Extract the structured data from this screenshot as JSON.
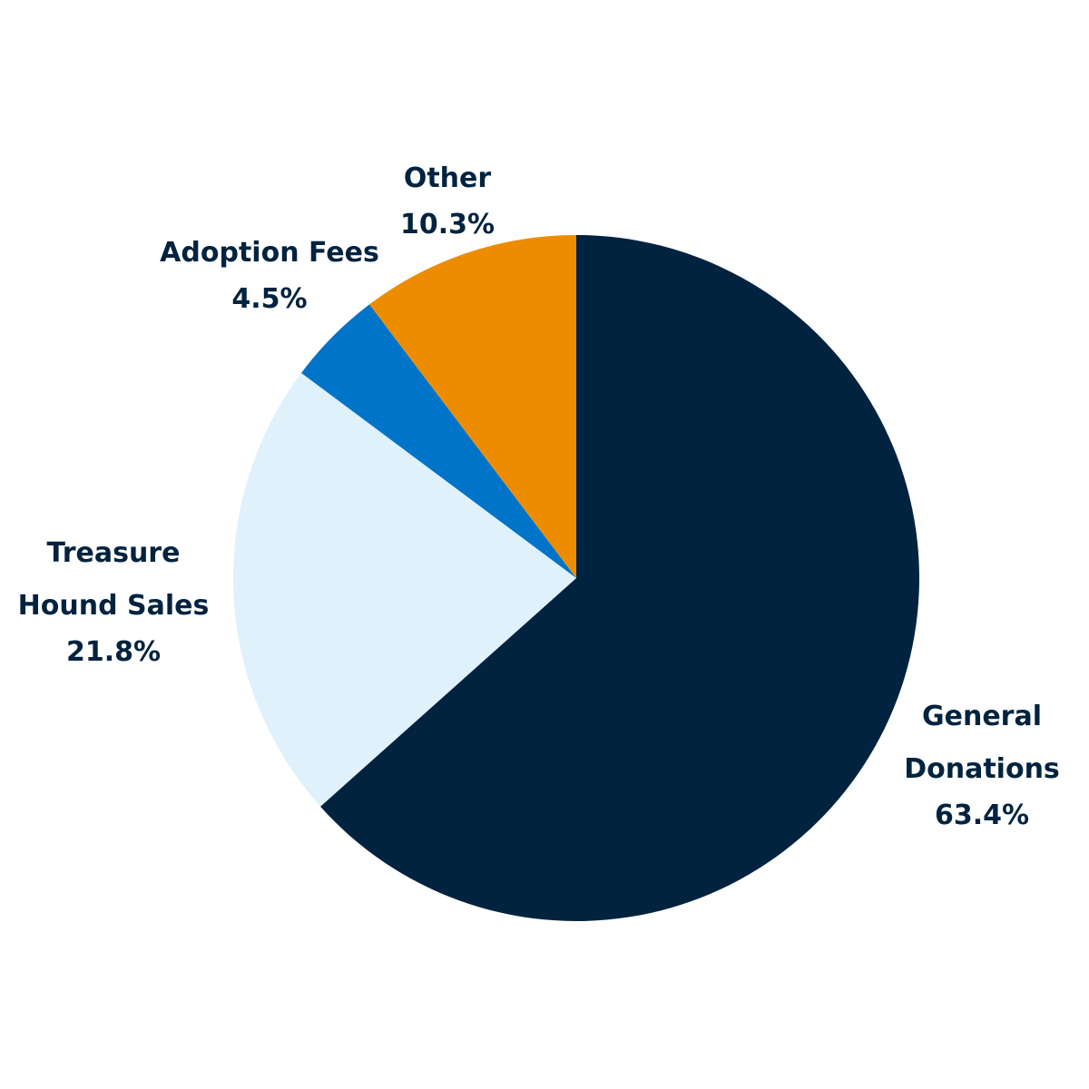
{
  "chart_data": {
    "type": "pie",
    "categories": [
      "General\nDonations",
      "Treasure\nHound Sales",
      "Adoption Fees",
      "Other"
    ],
    "values": [
      63.4,
      21.8,
      4.5,
      10.3
    ],
    "value_labels": [
      "63.4%",
      "21.8%",
      "4.5%",
      "10.3%"
    ],
    "colors": [
      "#01233f",
      "#dff1fa",
      "#0074c8",
      "#ee8c00"
    ]
  }
}
